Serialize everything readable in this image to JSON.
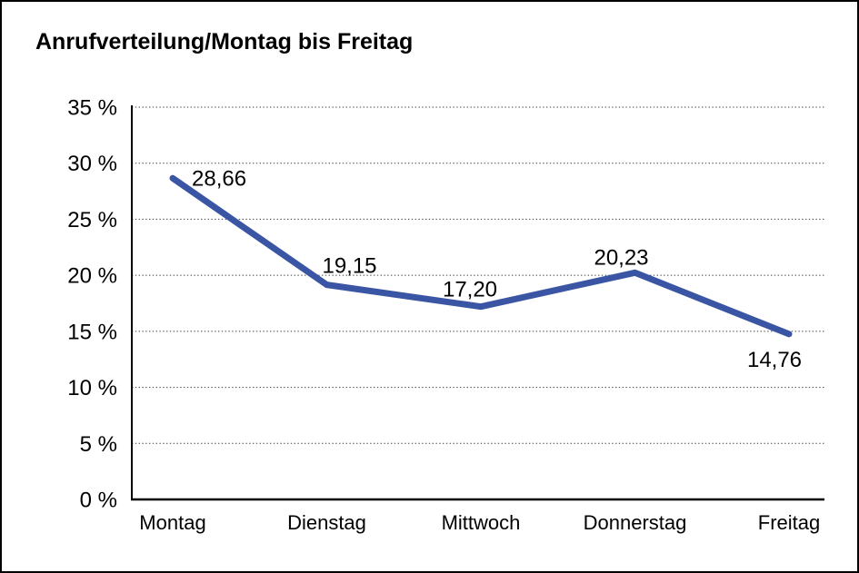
{
  "window": {
    "background": "#FFFFFF",
    "border_color": "#000000"
  },
  "chart_data": {
    "type": "line",
    "title": "Anrufverteilung/Montag bis Freitag",
    "categories": [
      "Montag",
      "Dienstag",
      "Mittwoch",
      "Donnerstag",
      "Freitag"
    ],
    "values": [
      28.66,
      19.15,
      17.2,
      20.23,
      14.76
    ],
    "point_labels": [
      "28,66",
      "19,15",
      "17,20",
      "20,23",
      "14,76"
    ],
    "xlabel": "",
    "ylabel": "",
    "ylim": [
      0,
      35
    ],
    "ytick_step": 5,
    "ytick_labels": [
      "0 %",
      "5 %",
      "10 %",
      "15 %",
      "20 %",
      "25 %",
      "30 %",
      "35 %"
    ],
    "grid": "horizontal dotted",
    "legend": "none",
    "line_color": "#3A55A4",
    "axis_color": "#000000",
    "gridline_color": "#404040",
    "text_color": "#000000"
  }
}
